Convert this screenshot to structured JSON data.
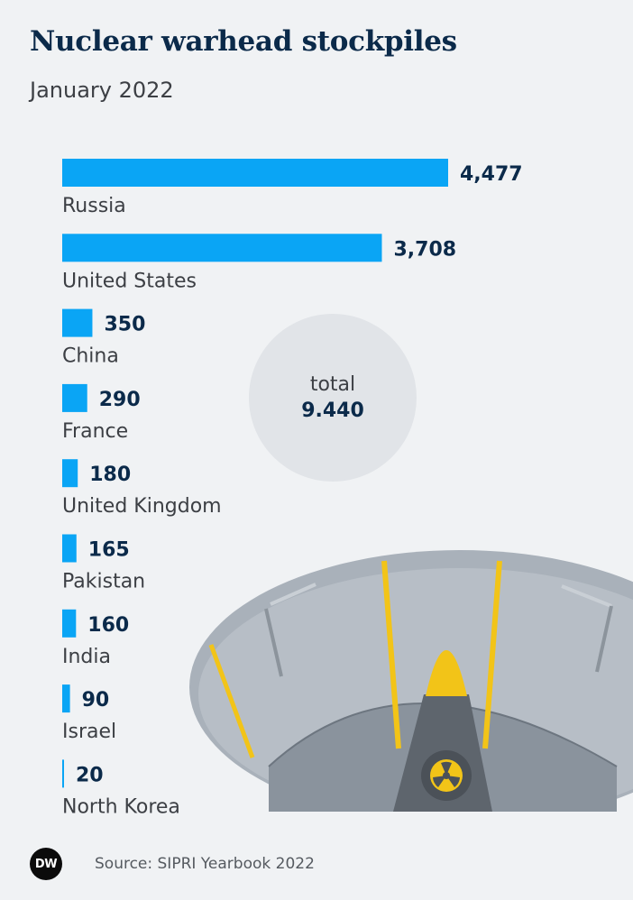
{
  "header": {
    "title": "Nuclear warhead stockpiles",
    "subtitle": "January 2022"
  },
  "total": {
    "label": "total",
    "value": "9.440"
  },
  "footer": {
    "logo": "DW",
    "source": "Source: SIPRI Yearbook 2022"
  },
  "colors": {
    "bar": "#0aa5f5",
    "title": "#0b2a4a",
    "background": "#f0f2f4",
    "accent_yellow": "#f2c418"
  },
  "illustration": {
    "icon": "nuclear-missile-silo-icon"
  },
  "chart_data": {
    "type": "bar",
    "orientation": "horizontal",
    "title": "Nuclear warhead stockpiles",
    "subtitle": "January 2022",
    "categories": [
      "Russia",
      "United States",
      "China",
      "France",
      "United Kingdom",
      "Pakistan",
      "India",
      "Israel",
      "North Korea"
    ],
    "values": [
      4477,
      3708,
      350,
      290,
      180,
      165,
      160,
      90,
      20
    ],
    "value_labels": [
      "4,477",
      "3,708",
      "350",
      "290",
      "180",
      "165",
      "160",
      "90",
      "20"
    ],
    "xlim": [
      0,
      4477
    ],
    "grid": false,
    "legend": "none"
  }
}
